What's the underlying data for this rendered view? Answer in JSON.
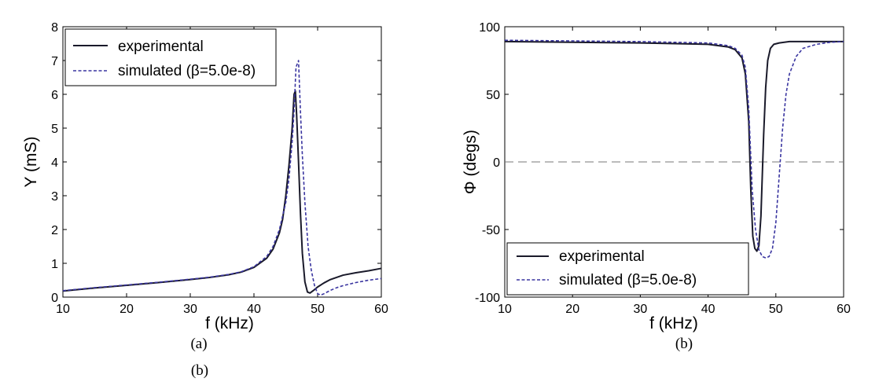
{
  "chart_data": [
    {
      "type": "line",
      "caption": "(a)",
      "xlabel": "f (kHz)",
      "ylabel": "Y (mS)",
      "xlim": [
        10,
        60
      ],
      "ylim": [
        0,
        8
      ],
      "xticks": [
        10,
        20,
        30,
        40,
        50,
        60
      ],
      "yticks": [
        0,
        1,
        2,
        3,
        4,
        5,
        6,
        7,
        8
      ],
      "grid": false,
      "legend": "top-left",
      "series": [
        {
          "name": "experimental",
          "color": "#1a1a2a",
          "style": "solid",
          "x": [
            10,
            15,
            20,
            25,
            30,
            33,
            36,
            38,
            40,
            42,
            43,
            44,
            44.5,
            45,
            45.5,
            46,
            46.3,
            46.5,
            46.7,
            47,
            47.3,
            47.6,
            48,
            48.4,
            48.8,
            49.5,
            50,
            51,
            52,
            54,
            56,
            58,
            60
          ],
          "y": [
            0.18,
            0.27,
            0.35,
            0.43,
            0.52,
            0.58,
            0.66,
            0.74,
            0.88,
            1.15,
            1.42,
            1.9,
            2.3,
            3.0,
            3.9,
            5.0,
            6.0,
            6.1,
            5.4,
            4.0,
            2.5,
            1.3,
            0.45,
            0.15,
            0.12,
            0.22,
            0.3,
            0.42,
            0.52,
            0.65,
            0.72,
            0.78,
            0.85
          ]
        },
        {
          "name": "simulated (β=5.0e-8)",
          "color": "#3a35a0",
          "style": "dashed",
          "x": [
            10,
            15,
            20,
            25,
            30,
            33,
            36,
            38,
            40,
            42,
            43,
            44,
            45,
            45.5,
            46,
            46.3,
            46.6,
            47,
            47.3,
            47.6,
            48,
            48.5,
            49,
            49.5,
            50,
            50.5,
            51,
            52,
            53,
            54,
            56,
            58,
            60
          ],
          "y": [
            0.19,
            0.28,
            0.36,
            0.44,
            0.53,
            0.59,
            0.67,
            0.75,
            0.9,
            1.2,
            1.5,
            2.0,
            2.8,
            3.5,
            4.6,
            5.5,
            6.8,
            7.0,
            5.5,
            4.2,
            2.8,
            1.5,
            0.8,
            0.35,
            0.1,
            0.06,
            0.1,
            0.2,
            0.28,
            0.34,
            0.43,
            0.5,
            0.55
          ]
        }
      ]
    },
    {
      "type": "line",
      "caption": "(b)",
      "xlabel": "f (kHz)",
      "ylabel": "Φ (degs)",
      "xlim": [
        10,
        60
      ],
      "ylim": [
        -100,
        100
      ],
      "xticks": [
        10,
        20,
        30,
        40,
        50,
        60
      ],
      "yticks": [
        -100,
        -50,
        0,
        50,
        100
      ],
      "grid": false,
      "legend": "bottom-left",
      "reference_line_y": 0,
      "series": [
        {
          "name": "experimental",
          "color": "#1a1a2a",
          "style": "solid",
          "x": [
            10,
            20,
            30,
            40,
            43,
            44,
            45,
            45.5,
            46,
            46.3,
            46.6,
            46.9,
            47.2,
            47.5,
            47.8,
            48,
            48.2,
            48.5,
            48.8,
            49.2,
            49.7,
            50.5,
            52,
            55,
            60
          ],
          "y": [
            89,
            88.5,
            88,
            87,
            85,
            83,
            77,
            65,
            30,
            -20,
            -55,
            -64,
            -66,
            -62,
            -40,
            -10,
            20,
            55,
            75,
            84,
            87,
            88,
            89,
            89,
            89
          ]
        },
        {
          "name": "simulated (β=5.0e-8)",
          "color": "#3a35a0",
          "style": "dashed",
          "x": [
            10,
            20,
            30,
            40,
            43,
            44,
            45,
            45.5,
            46,
            46.5,
            47,
            47.5,
            48,
            48.5,
            49,
            49.5,
            50,
            50.5,
            51,
            51.5,
            52,
            53,
            54,
            56,
            58,
            60
          ],
          "y": [
            90,
            89.5,
            89,
            88,
            86,
            84,
            79,
            70,
            40,
            -20,
            -50,
            -65,
            -70,
            -71,
            -70,
            -64,
            -45,
            -10,
            25,
            50,
            65,
            78,
            84,
            87,
            88.5,
            89
          ]
        }
      ]
    }
  ],
  "captions": {
    "left": "(a)",
    "right": "(b)",
    "below": "(b)"
  },
  "legend": {
    "series0": "experimental",
    "series1": "simulated (β=5.0e-8)"
  }
}
